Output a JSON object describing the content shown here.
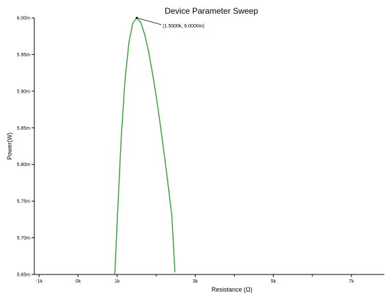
{
  "chart_data": {
    "type": "line",
    "title": "Device Parameter Sweep",
    "xlabel": "Resistance (Ω)",
    "ylabel": "Power(W)",
    "xlim": [
      -1000,
      8000
    ],
    "ylim": [
      0.00565,
      0.006
    ],
    "x_ticks": [
      {
        "value": -1000,
        "label": "-1k"
      },
      {
        "value": 0,
        "label": "0k"
      },
      {
        "value": 1000,
        "label": "1k"
      },
      {
        "value": 3000,
        "label": "3k"
      },
      {
        "value": 5000,
        "label": "5k"
      },
      {
        "value": 7000,
        "label": "7k"
      }
    ],
    "y_ticks": [
      {
        "value": 0.00565,
        "label": "5.65m"
      },
      {
        "value": 0.0057,
        "label": "5.70m"
      },
      {
        "value": 0.00575,
        "label": "5.75m"
      },
      {
        "value": 0.0058,
        "label": "5.80m"
      },
      {
        "value": 0.00585,
        "label": "5.85m"
      },
      {
        "value": 0.0059,
        "label": "5.90m"
      },
      {
        "value": 0.00595,
        "label": "5.95m"
      },
      {
        "value": 0.006,
        "label": "6.00m"
      }
    ],
    "grid": false,
    "legend": "none",
    "series": [
      {
        "color": "#2ca02c",
        "x": [
          940,
          1000,
          1100,
          1200,
          1300,
          1400,
          1500,
          1600,
          1700,
          1800,
          1900,
          2000,
          2100,
          2200,
          2300,
          2400,
          2480
        ],
        "y": [
          0.00565,
          0.005723,
          0.005833,
          0.005915,
          0.005966,
          0.005993,
          0.006,
          0.005994,
          0.005978,
          0.005955,
          0.005926,
          0.005893,
          0.005856,
          0.005816,
          0.005774,
          0.00573,
          0.005653
        ]
      }
    ],
    "annotations": [
      {
        "text": "(1.5000k, 6.0000m)",
        "x": 1500,
        "y": 0.006
      }
    ]
  }
}
